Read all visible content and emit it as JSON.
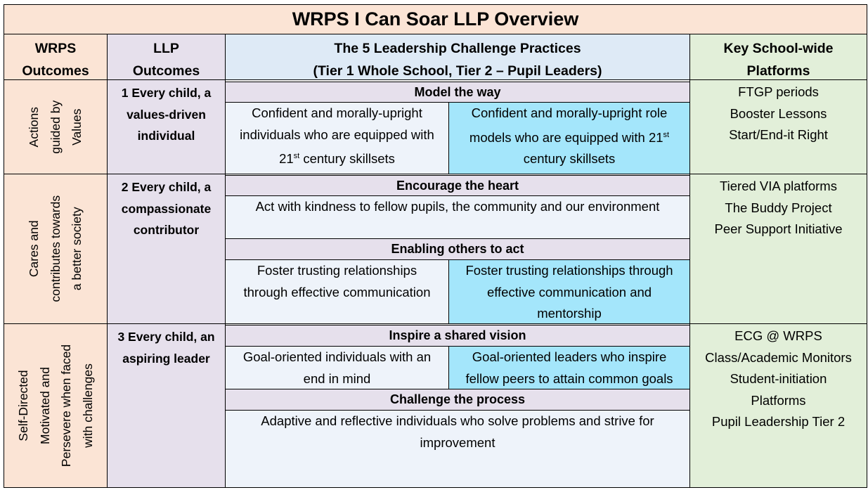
{
  "title": "WRPS I Can Soar LLP Overview",
  "headers": {
    "wrps_outcomes": [
      "WRPS",
      "Outcomes"
    ],
    "llp_outcomes": [
      "LLP",
      "Outcomes"
    ],
    "practices": [
      "The 5 Leadership Challenge Practices",
      "(Tier 1 Whole School, Tier 2 – Pupil Leaders)"
    ],
    "platforms": [
      "Key School-wide",
      "Platforms"
    ]
  },
  "rows": [
    {
      "wrps_outcome": [
        "Actions",
        "guided by",
        "Values"
      ],
      "llp_outcome": [
        "1 Every child, a",
        "values-driven",
        "individual"
      ],
      "platforms": [
        "FTGP periods",
        "Booster Lessons",
        "Start/End-it Right"
      ]
    },
    {
      "wrps_outcome": [
        "Cares and",
        "contributes towards",
        "a better society"
      ],
      "llp_outcome": [
        "2 Every child, a",
        "compassionate",
        "contributor"
      ],
      "platforms": [
        "Tiered VIA platforms",
        "The Buddy Project",
        "Peer Support Initiative"
      ]
    },
    {
      "wrps_outcome": [
        "Self-Directed",
        "Motivated and",
        "Persevere when faced",
        "with challenges"
      ],
      "llp_outcome": [
        "3 Every child, an",
        "aspiring leader"
      ],
      "platforms": [
        "ECG @ WRPS",
        "Class/Academic Monitors",
        "Student-initiation",
        "Platforms",
        "Pupil Leadership Tier 2"
      ]
    }
  ],
  "practices": {
    "model": {
      "name": "Model the way",
      "tier1": [
        "Confident and morally-upright",
        "individuals who are equipped with",
        "21",
        "st",
        " century skillsets"
      ],
      "tier2": [
        "Confident and morally-upright role",
        "models who are equipped with 21",
        "st",
        "century skillsets"
      ]
    },
    "encourage": {
      "name": "Encourage the heart",
      "text": "Act with kindness to fellow pupils, the community and our environment"
    },
    "enable": {
      "name": "Enabling others to act",
      "tier1": [
        "Foster trusting relationships",
        "through effective communication"
      ],
      "tier2": [
        "Foster trusting relationships through",
        "effective communication and",
        "mentorship"
      ]
    },
    "inspire": {
      "name": "Inspire a shared vision",
      "tier1": [
        "Goal-oriented individuals with an",
        "end in mind"
      ],
      "tier2": [
        "Goal-oriented leaders who inspire",
        "fellow peers to attain common goals"
      ]
    },
    "challenge": {
      "name": "Challenge the process",
      "text": [
        "Adaptive and reflective individuals who solve problems and strive for",
        "improvement"
      ]
    }
  }
}
